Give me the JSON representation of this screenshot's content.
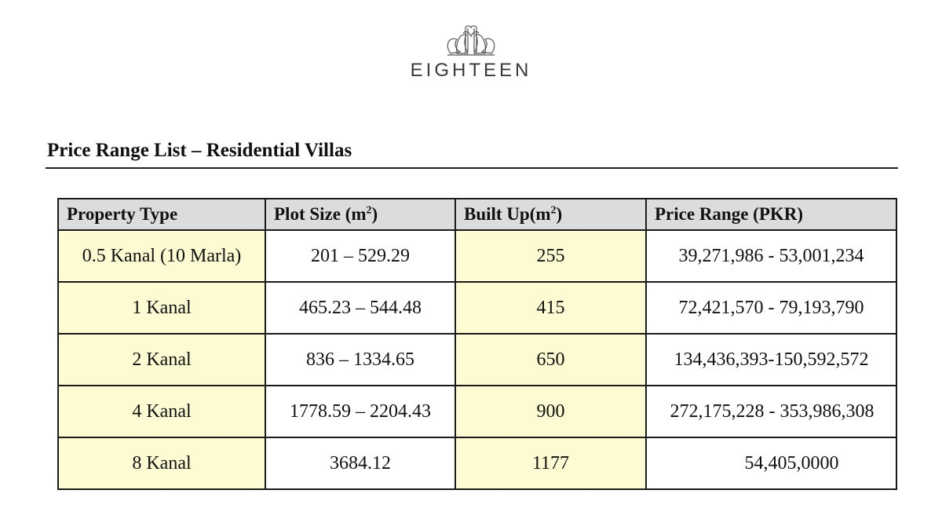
{
  "brand": {
    "name": "EIGHTEEN",
    "logo_icon": "eighteen-floral-emblem-icon"
  },
  "document": {
    "title": "Price Range List – Residential Villas"
  },
  "table": {
    "headers": [
      {
        "label": "Property Type",
        "sup": ""
      },
      {
        "label": "Plot Size (m",
        "sup": "2",
        "suffix": ")"
      },
      {
        "label": "Built Up(m",
        "sup": "2",
        "suffix": ")"
      },
      {
        "label": "Price Range (PKR)",
        "sup": ""
      }
    ],
    "rows": [
      {
        "type": "0.5 Kanal (10 Marla)",
        "plot": "201 – 529.29",
        "built": "255",
        "price": "39,271,986  - 53,001,234"
      },
      {
        "type": "1 Kanal",
        "plot": "465.23 – 544.48",
        "built": "415",
        "price": "72,421,570  - 79,193,790"
      },
      {
        "type": "2 Kanal",
        "plot": "836 – 1334.65",
        "built": "650",
        "price": "134,436,393-150,592,572"
      },
      {
        "type": "4 Kanal",
        "plot": "1778.59 – 2204.43",
        "built": "900",
        "price": "272,175,228 - 353,986,308"
      },
      {
        "type": "8 Kanal",
        "plot": "3684.12",
        "built": "1177",
        "price": "54,405,0000"
      }
    ],
    "colors": {
      "header_bg": "#dcdcdc",
      "highlight_bg": "#fdfbd2"
    }
  }
}
